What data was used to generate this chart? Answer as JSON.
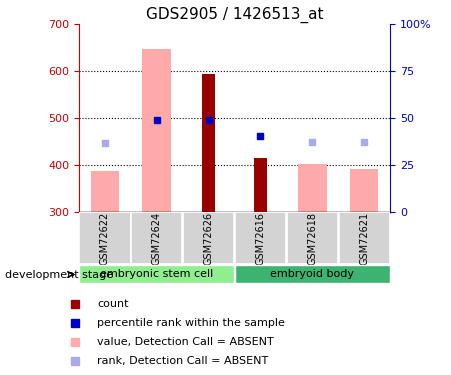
{
  "title": "GDS2905 / 1426513_at",
  "samples": [
    "GSM72622",
    "GSM72624",
    "GSM72626",
    "GSM72616",
    "GSM72618",
    "GSM72621"
  ],
  "group1_name": "embryonic stem cell",
  "group1_color": "#90EE90",
  "group1_indices": [
    0,
    1,
    2
  ],
  "group2_name": "embryoid body",
  "group2_color": "#3cb371",
  "group2_indices": [
    3,
    4,
    5
  ],
  "bar_bottom": 300,
  "ylim": [
    300,
    700
  ],
  "yticks_left": [
    300,
    400,
    500,
    600,
    700
  ],
  "yticks_right_labels": [
    "0",
    "25",
    "50",
    "75",
    "100%"
  ],
  "yticks_right_positions": [
    300,
    400,
    500,
    600,
    700
  ],
  "grid_lines": [
    400,
    500,
    600
  ],
  "red_bars": [
    null,
    null,
    595,
    415,
    null,
    null
  ],
  "pink_bars": [
    388,
    648,
    null,
    null,
    402,
    392
  ],
  "blue_squares": [
    null,
    497,
    497,
    462,
    null,
    null
  ],
  "light_blue_squares": [
    448,
    null,
    null,
    null,
    450,
    450
  ],
  "red_color": "#990000",
  "pink_color": "#ffaaaa",
  "blue_color": "#0000cc",
  "light_blue_color": "#aaaaee",
  "pink_bar_width": 0.55,
  "red_bar_width": 0.25,
  "marker_size": 5,
  "title_fontsize": 11,
  "tick_fontsize": 8,
  "legend_fontsize": 8,
  "sample_fontsize": 7,
  "group_fontsize": 8,
  "devstage_fontsize": 8,
  "left_color": "#cc0000",
  "right_color": "#0000cc",
  "sample_box_color": "#d3d3d3",
  "legend_items": [
    {
      "color": "#990000",
      "label": "count"
    },
    {
      "color": "#0000cc",
      "label": "percentile rank within the sample"
    },
    {
      "color": "#ffaaaa",
      "label": "value, Detection Call = ABSENT"
    },
    {
      "color": "#aaaaee",
      "label": "rank, Detection Call = ABSENT"
    }
  ]
}
